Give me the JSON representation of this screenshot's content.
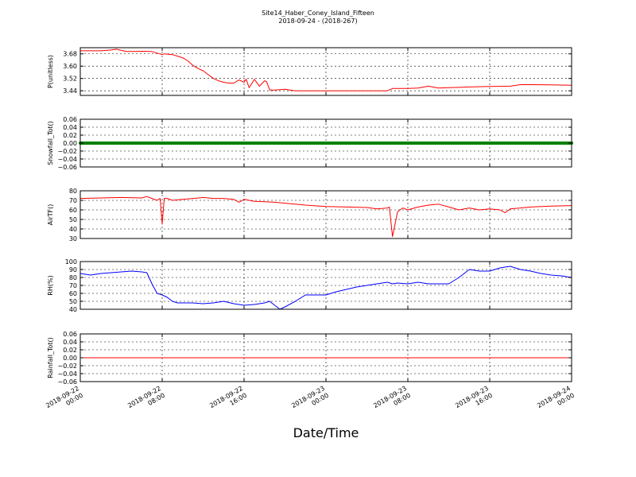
{
  "figure": {
    "title": "Site14_Haber_Coney_Island_Fifteen",
    "subtitle": "2018-09-24 - (2018-267)",
    "xlabel": "Date/Time"
  },
  "chart_data": [
    {
      "type": "line",
      "ylabel": "P(unitless)",
      "ylim": [
        3.41,
        3.72
      ],
      "yticks": [
        3.44,
        3.52,
        3.6,
        3.68
      ],
      "ytick_labels": [
        "3.44",
        "3.52",
        "3.60",
        "3.68"
      ],
      "xlim": [
        0,
        48
      ],
      "grid": true,
      "series": [
        {
          "color": "#ff0000",
          "x": [
            0,
            2,
            3,
            3.5,
            4.5,
            5,
            6,
            7,
            8,
            8.2,
            9,
            9.5,
            10,
            10.5,
            11,
            11.5,
            12,
            12.5,
            13,
            13.5,
            14,
            14.5,
            15,
            15.5,
            16,
            16.2,
            16.5,
            17,
            17.5,
            18,
            18.2,
            18.5,
            19,
            20,
            21,
            22,
            24,
            26,
            28,
            30,
            30.5,
            31,
            32,
            33,
            34,
            35,
            36,
            37,
            38,
            40,
            42,
            43,
            44,
            46,
            48
          ],
          "y": [
            3.7,
            3.7,
            3.705,
            3.71,
            3.695,
            3.695,
            3.697,
            3.695,
            3.675,
            3.68,
            3.675,
            3.665,
            3.655,
            3.635,
            3.605,
            3.585,
            3.57,
            3.545,
            3.52,
            3.505,
            3.495,
            3.49,
            3.49,
            3.51,
            3.495,
            3.515,
            3.46,
            3.515,
            3.47,
            3.505,
            3.5,
            3.445,
            3.445,
            3.45,
            3.44,
            3.44,
            3.44,
            3.44,
            3.44,
            3.44,
            3.455,
            3.455,
            3.455,
            3.458,
            3.47,
            3.458,
            3.46,
            3.462,
            3.465,
            3.468,
            3.47,
            3.48,
            3.48,
            3.478,
            3.476
          ]
        }
      ]
    },
    {
      "type": "line",
      "ylabel": "Snowfall_Tot()",
      "ylim": [
        -0.06,
        0.06
      ],
      "yticks": [
        -0.06,
        -0.04,
        -0.02,
        0.0,
        0.02,
        0.04,
        0.06
      ],
      "ytick_labels": [
        "−0.06",
        "−0.04",
        "−0.02",
        "0.00",
        "0.02",
        "0.04",
        "0.06"
      ],
      "xlim": [
        0,
        48
      ],
      "grid": true,
      "series": [
        {
          "color": "#008000",
          "x": [
            0,
            48
          ],
          "y": [
            0,
            0
          ]
        }
      ]
    },
    {
      "type": "line",
      "ylabel": "AirTF()",
      "ylim": [
        30,
        80
      ],
      "yticks": [
        30,
        40,
        50,
        60,
        70,
        80
      ],
      "ytick_labels": [
        "30",
        "40",
        "50",
        "60",
        "70",
        "80"
      ],
      "xlim": [
        0,
        48
      ],
      "grid": true,
      "series": [
        {
          "color": "#ff0000",
          "x": [
            0,
            2,
            4,
            6,
            6.5,
            7,
            7.5,
            7.8,
            8,
            8.2,
            8.5,
            9,
            10,
            11,
            12,
            13,
            14,
            15,
            15.5,
            16,
            17,
            18,
            19,
            20,
            22,
            24,
            26,
            28,
            29,
            30,
            30.2,
            30.5,
            31,
            31.5,
            32,
            33,
            34,
            35,
            36,
            37,
            38,
            39,
            40,
            41,
            41.5,
            42,
            43,
            44,
            46,
            48
          ],
          "y": [
            72,
            72.5,
            73,
            72.5,
            74,
            72,
            70,
            72,
            45,
            72,
            72,
            70,
            71,
            72,
            73,
            72,
            72,
            71,
            68,
            71,
            69,
            68.5,
            68,
            67,
            65,
            63.5,
            63,
            62.5,
            61,
            62,
            63,
            32,
            58,
            62,
            60,
            63,
            65,
            66,
            63,
            60,
            62,
            60,
            61,
            60,
            57,
            61,
            62,
            63,
            64,
            64.5
          ]
        }
      ]
    },
    {
      "type": "line",
      "ylabel": "RH(%)",
      "ylim": [
        40,
        100
      ],
      "yticks": [
        40,
        50,
        60,
        70,
        80,
        90,
        100
      ],
      "ytick_labels": [
        "40",
        "50",
        "60",
        "70",
        "80",
        "90",
        "100"
      ],
      "xlim": [
        0,
        48
      ],
      "grid": true,
      "series": [
        {
          "color": "#0000ff",
          "x": [
            0,
            1,
            2,
            3,
            4,
            5,
            6,
            6.5,
            7,
            7.5,
            8,
            8.5,
            9,
            9.5,
            10,
            11,
            12,
            13,
            14,
            15,
            16,
            17,
            18,
            18.5,
            19,
            19.5,
            20,
            21,
            22,
            23,
            24,
            25,
            26,
            27,
            28,
            29,
            30,
            30.5,
            31,
            32,
            33,
            34,
            35,
            36,
            37,
            38,
            39,
            40,
            41,
            42,
            43,
            44,
            45,
            46,
            47,
            48
          ],
          "y": [
            85,
            83,
            85,
            86,
            87,
            88,
            87,
            86,
            72,
            60,
            58,
            55,
            50,
            48,
            48,
            48,
            47,
            48,
            50,
            47,
            45,
            46,
            48,
            50,
            45,
            40,
            43,
            50,
            58,
            58,
            58,
            62,
            65,
            68,
            70,
            72,
            74,
            72,
            73,
            72,
            74,
            72,
            72,
            72,
            80,
            90,
            88,
            88,
            92,
            94,
            90,
            88,
            85,
            83,
            82,
            80
          ]
        }
      ]
    },
    {
      "type": "line",
      "ylabel": "Rainfall_Tot()",
      "ylim": [
        -0.06,
        0.06
      ],
      "yticks": [
        -0.06,
        -0.04,
        -0.02,
        0.0,
        0.02,
        0.04,
        0.06
      ],
      "ytick_labels": [
        "−0.06",
        "−0.04",
        "−0.02",
        "0.00",
        "0.02",
        "0.04",
        "0.06"
      ],
      "xlim": [
        0,
        48
      ],
      "grid": true,
      "series": [
        {
          "color": "#ff0000",
          "x": [
            0,
            48
          ],
          "y": [
            0,
            0
          ]
        }
      ]
    }
  ],
  "x_axis": {
    "ticks": [
      0,
      8,
      16,
      24,
      32,
      40,
      48
    ],
    "tick_labels": [
      [
        "2018-09-22",
        "00:00"
      ],
      [
        "2018-09-22",
        "08:00"
      ],
      [
        "2018-09-22",
        "16:00"
      ],
      [
        "2018-09-23",
        "00:00"
      ],
      [
        "2018-09-23",
        "08:00"
      ],
      [
        "2018-09-23",
        "16:00"
      ],
      [
        "2018-09-24",
        "00:00"
      ]
    ]
  }
}
